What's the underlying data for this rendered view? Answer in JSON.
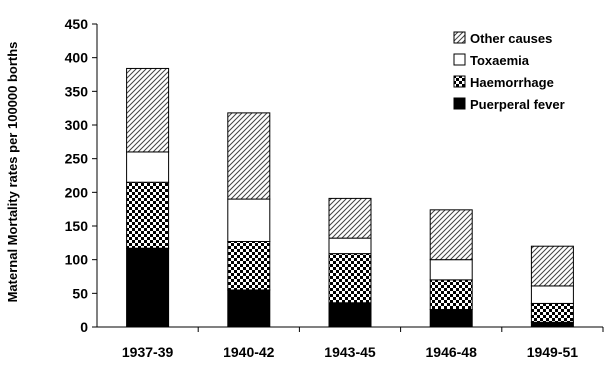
{
  "chart_data": {
    "type": "bar",
    "stacked": true,
    "title": "",
    "xlabel": "",
    "ylabel": "Maternal Mortality rates per 100000 borths",
    "ylim": [
      0,
      450
    ],
    "yticks": [
      0,
      50,
      100,
      150,
      200,
      250,
      300,
      350,
      400,
      450
    ],
    "grid": false,
    "legend_position": "top-right",
    "categories": [
      "1937-39",
      "1940-42",
      "1943-45",
      "1946-48",
      "1949-51"
    ],
    "series": [
      {
        "name": "Puerperal fever",
        "pattern": "solid-black",
        "values": [
          117,
          55,
          36,
          26,
          7
        ]
      },
      {
        "name": "Haemorrhage",
        "pattern": "checker",
        "values": [
          98,
          72,
          73,
          44,
          28
        ]
      },
      {
        "name": "Toxaemia",
        "pattern": "white",
        "values": [
          45,
          63,
          23,
          30,
          26
        ]
      },
      {
        "name": "Other causes",
        "pattern": "diagonal",
        "values": [
          124,
          128,
          59,
          74,
          59
        ]
      }
    ],
    "legend_order": [
      "Other causes",
      "Toxaemia",
      "Haemorrhage",
      "Puerperal fever"
    ]
  }
}
